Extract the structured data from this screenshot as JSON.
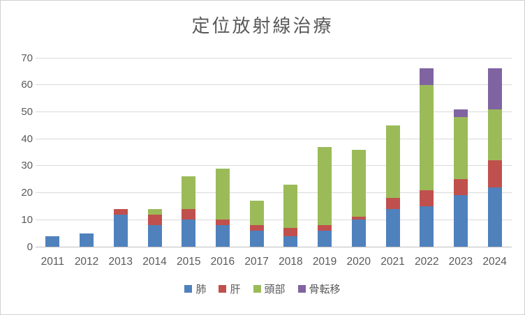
{
  "chart": {
    "title": "定位放射線治療"
  },
  "chart_data": {
    "type": "bar",
    "stacked": true,
    "title": "定位放射線治療",
    "categories": [
      "2011",
      "2012",
      "2013",
      "2014",
      "2015",
      "2016",
      "2017",
      "2018",
      "2019",
      "2020",
      "2021",
      "2022",
      "2023",
      "2024"
    ],
    "series": [
      {
        "name": "肺",
        "color": "#4F81BD",
        "values": [
          4,
          5,
          12,
          8,
          10,
          8,
          6,
          4,
          6,
          10,
          14,
          15,
          19,
          22
        ]
      },
      {
        "name": "肝",
        "color": "#C0504D",
        "values": [
          0,
          0,
          2,
          4,
          4,
          2,
          2,
          3,
          2,
          1,
          4,
          6,
          6,
          10
        ]
      },
      {
        "name": "頭部",
        "color": "#9BBB59",
        "values": [
          0,
          0,
          0,
          2,
          12,
          19,
          9,
          16,
          29,
          25,
          27,
          39,
          23,
          19
        ]
      },
      {
        "name": "骨転移",
        "color": "#8064A2",
        "values": [
          0,
          0,
          0,
          0,
          0,
          0,
          0,
          0,
          0,
          0,
          0,
          6,
          3,
          15
        ]
      }
    ],
    "totals": [
      4,
      5,
      14,
      14,
      26,
      29,
      17,
      23,
      37,
      36,
      45,
      66,
      51,
      66
    ],
    "ylim": [
      0,
      70
    ],
    "yticks": [
      0,
      10,
      20,
      30,
      40,
      50,
      60,
      70
    ],
    "xlabel": "",
    "ylabel": "",
    "grid": true,
    "legend_position": "bottom"
  },
  "colors": {
    "background": "#FFFFFF",
    "gridline": "#D9D9D9",
    "axis_line": "#BFBFBF",
    "text": "#595959"
  }
}
